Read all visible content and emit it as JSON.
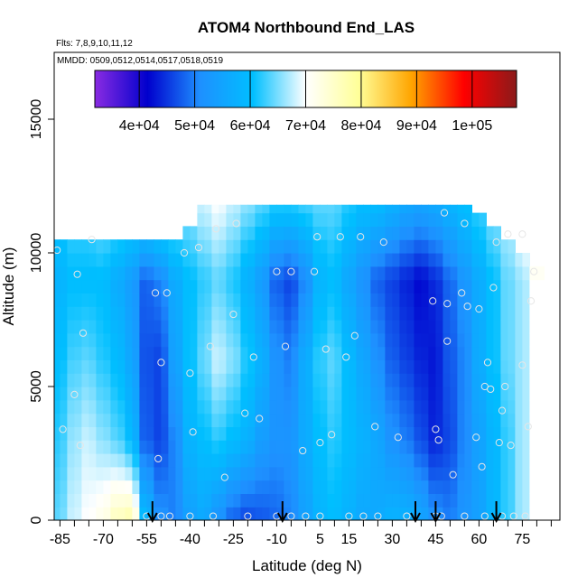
{
  "chart_data": {
    "type": "heatmap",
    "title": "ATOM4 Northbound End_LAS",
    "notes": [
      "Flts: 7,8,9,10,11,12",
      "MMDD: 0509,0512,0514,0517,0518,0519"
    ],
    "xlabel": "Latitude (deg N)",
    "ylabel": "Altitude (m)",
    "xlim": [
      -87,
      88
    ],
    "ylim": [
      0,
      17500
    ],
    "x_ticks": [
      -85,
      -70,
      -55,
      -40,
      -25,
      -10,
      5,
      15,
      30,
      45,
      60,
      75
    ],
    "x_minor_ticks": [
      -80,
      -75,
      -65,
      -60,
      -50,
      -45,
      -35,
      -30,
      -20,
      -15,
      -5,
      0,
      10,
      20,
      25,
      35,
      40,
      50,
      55,
      65,
      70,
      80,
      85
    ],
    "y_ticks": [
      0,
      5000,
      10000,
      15000
    ],
    "colorbar": {
      "min": 32000,
      "max": 108000,
      "ticks": [
        40000,
        50000,
        60000,
        70000,
        80000,
        90000,
        100000
      ],
      "tick_labels": [
        "4e+04",
        "5e+04",
        "6e+04",
        "7e+04",
        "8e+04",
        "9e+04",
        "1e+05"
      ],
      "colors": [
        "#8a2be2",
        "#0000cd",
        "#1e90ff",
        "#00bfff",
        "#ffffff",
        "#ffff99",
        "#ffa500",
        "#ff0000",
        "#8b1a1a"
      ]
    },
    "grid": [
      {
        "lat": -85,
        "top": 10500,
        "v": [
          [
            0,
            64000
          ],
          [
            3000,
            62000
          ],
          [
            6000,
            60000
          ],
          [
            9000,
            58000
          ],
          [
            10500,
            60000
          ]
        ]
      },
      {
        "lat": -80,
        "top": 10500,
        "v": [
          [
            0,
            68000
          ],
          [
            3000,
            66000
          ],
          [
            6000,
            63000
          ],
          [
            9000,
            60000
          ],
          [
            10500,
            62000
          ]
        ]
      },
      {
        "lat": -75,
        "top": 10500,
        "v": [
          [
            0,
            70000
          ],
          [
            3000,
            68000
          ],
          [
            6000,
            64000
          ],
          [
            9000,
            60000
          ],
          [
            10500,
            62000
          ]
        ]
      },
      {
        "lat": -70,
        "top": 10500,
        "v": [
          [
            0,
            72000
          ],
          [
            3000,
            66000
          ],
          [
            6000,
            62000
          ],
          [
            9000,
            60000
          ],
          [
            10500,
            63000
          ]
        ]
      },
      {
        "lat": -65,
        "top": 10500,
        "v": [
          [
            0,
            76000
          ],
          [
            3000,
            64000
          ],
          [
            6000,
            60000
          ],
          [
            9000,
            57000
          ],
          [
            10500,
            62000
          ]
        ]
      },
      {
        "lat": -60,
        "top": 10500,
        "v": [
          [
            0,
            78000
          ],
          [
            3000,
            60000
          ],
          [
            6000,
            56000
          ],
          [
            9000,
            54000
          ],
          [
            10500,
            60000
          ]
        ]
      },
      {
        "lat": -55,
        "top": 10500,
        "v": [
          [
            0,
            60000
          ],
          [
            3000,
            48000
          ],
          [
            6000,
            47000
          ],
          [
            9000,
            48000
          ],
          [
            10500,
            58000
          ]
        ]
      },
      {
        "lat": -50,
        "top": 10500,
        "v": [
          [
            0,
            52000
          ],
          [
            3000,
            46000
          ],
          [
            6000,
            46000
          ],
          [
            9000,
            50000
          ],
          [
            10500,
            60000
          ]
        ]
      },
      {
        "lat": -45,
        "top": 10500,
        "v": [
          [
            0,
            50000
          ],
          [
            3000,
            50000
          ],
          [
            6000,
            54000
          ],
          [
            9000,
            56000
          ],
          [
            10500,
            62000
          ]
        ]
      },
      {
        "lat": -40,
        "top": 11000,
        "v": [
          [
            0,
            54000
          ],
          [
            3000,
            58000
          ],
          [
            6000,
            60000
          ],
          [
            9000,
            60000
          ],
          [
            11000,
            64000
          ]
        ]
      },
      {
        "lat": -35,
        "top": 11800,
        "v": [
          [
            0,
            56000
          ],
          [
            3000,
            60000
          ],
          [
            6000,
            64000
          ],
          [
            9000,
            62000
          ],
          [
            11800,
            68000
          ]
        ]
      },
      {
        "lat": -30,
        "top": 11800,
        "v": [
          [
            0,
            52000
          ],
          [
            3000,
            62000
          ],
          [
            6000,
            68000
          ],
          [
            9000,
            64000
          ],
          [
            11800,
            70000
          ]
        ]
      },
      {
        "lat": -25,
        "top": 11800,
        "v": [
          [
            0,
            48000
          ],
          [
            3000,
            60000
          ],
          [
            6000,
            66000
          ],
          [
            9000,
            62000
          ],
          [
            11800,
            68000
          ]
        ]
      },
      {
        "lat": -20,
        "top": 11800,
        "v": [
          [
            0,
            46000
          ],
          [
            3000,
            58000
          ],
          [
            6000,
            62000
          ],
          [
            9000,
            58000
          ],
          [
            11800,
            66000
          ]
        ]
      },
      {
        "lat": -15,
        "top": 11800,
        "v": [
          [
            0,
            47000
          ],
          [
            3000,
            54000
          ],
          [
            6000,
            58000
          ],
          [
            9000,
            54000
          ],
          [
            11800,
            64000
          ]
        ]
      },
      {
        "lat": -10,
        "top": 11800,
        "v": [
          [
            0,
            48000
          ],
          [
            3000,
            52000
          ],
          [
            6000,
            52000
          ],
          [
            9000,
            48000
          ],
          [
            11800,
            62000
          ]
        ]
      },
      {
        "lat": -5,
        "top": 11800,
        "v": [
          [
            0,
            50000
          ],
          [
            3000,
            52000
          ],
          [
            6000,
            50000
          ],
          [
            9000,
            46000
          ],
          [
            11800,
            62000
          ]
        ]
      },
      {
        "lat": 0,
        "top": 11800,
        "v": [
          [
            0,
            54000
          ],
          [
            3000,
            56000
          ],
          [
            6000,
            56000
          ],
          [
            9000,
            50000
          ],
          [
            11800,
            63000
          ]
        ]
      },
      {
        "lat": 5,
        "top": 11800,
        "v": [
          [
            0,
            58000
          ],
          [
            3000,
            60000
          ],
          [
            6000,
            62000
          ],
          [
            9000,
            58000
          ],
          [
            11800,
            64000
          ]
        ]
      },
      {
        "lat": 10,
        "top": 11800,
        "v": [
          [
            0,
            60000
          ],
          [
            3000,
            62000
          ],
          [
            6000,
            64000
          ],
          [
            9000,
            60000
          ],
          [
            11800,
            64000
          ]
        ]
      },
      {
        "lat": 15,
        "top": 11800,
        "v": [
          [
            0,
            58000
          ],
          [
            3000,
            60000
          ],
          [
            6000,
            60000
          ],
          [
            9000,
            56000
          ],
          [
            11800,
            62000
          ]
        ]
      },
      {
        "lat": 20,
        "top": 11800,
        "v": [
          [
            0,
            56000
          ],
          [
            3000,
            58000
          ],
          [
            6000,
            56000
          ],
          [
            9000,
            52000
          ],
          [
            11800,
            60000
          ]
        ]
      },
      {
        "lat": 25,
        "top": 11800,
        "v": [
          [
            0,
            56000
          ],
          [
            3000,
            56000
          ],
          [
            6000,
            52000
          ],
          [
            9000,
            48000
          ],
          [
            11800,
            60000
          ]
        ]
      },
      {
        "lat": 30,
        "top": 11800,
        "v": [
          [
            0,
            58000
          ],
          [
            3000,
            52000
          ],
          [
            6000,
            48000
          ],
          [
            9000,
            46000
          ],
          [
            11800,
            58000
          ]
        ]
      },
      {
        "lat": 35,
        "top": 11800,
        "v": [
          [
            0,
            58000
          ],
          [
            3000,
            50000
          ],
          [
            6000,
            46000
          ],
          [
            9000,
            44000
          ],
          [
            11800,
            56000
          ]
        ]
      },
      {
        "lat": 40,
        "top": 11800,
        "v": [
          [
            0,
            56000
          ],
          [
            3000,
            47000
          ],
          [
            6000,
            44000
          ],
          [
            9000,
            42000
          ],
          [
            11800,
            55000
          ]
        ]
      },
      {
        "lat": 45,
        "top": 11800,
        "v": [
          [
            0,
            52000
          ],
          [
            3000,
            44000
          ],
          [
            6000,
            43000
          ],
          [
            9000,
            44000
          ],
          [
            11800,
            56000
          ]
        ]
      },
      {
        "lat": 50,
        "top": 11800,
        "v": [
          [
            0,
            50000
          ],
          [
            3000,
            46000
          ],
          [
            6000,
            47000
          ],
          [
            9000,
            48000
          ],
          [
            11800,
            58000
          ]
        ]
      },
      {
        "lat": 55,
        "top": 11800,
        "v": [
          [
            0,
            52000
          ],
          [
            3000,
            50000
          ],
          [
            6000,
            50000
          ],
          [
            9000,
            52000
          ],
          [
            11800,
            60000
          ]
        ]
      },
      {
        "lat": 60,
        "top": 11500,
        "v": [
          [
            0,
            54000
          ],
          [
            3000,
            54000
          ],
          [
            6000,
            56000
          ],
          [
            9000,
            56000
          ],
          [
            11500,
            62000
          ]
        ]
      },
      {
        "lat": 65,
        "top": 11000,
        "v": [
          [
            0,
            58000
          ],
          [
            3000,
            58000
          ],
          [
            6000,
            60000
          ],
          [
            9000,
            60000
          ],
          [
            11000,
            64000
          ]
        ]
      },
      {
        "lat": 70,
        "top": 10500,
        "v": [
          [
            0,
            62000
          ],
          [
            3000,
            62000
          ],
          [
            6000,
            64000
          ],
          [
            9000,
            64000
          ],
          [
            10500,
            66000
          ]
        ]
      },
      {
        "lat": 75,
        "top": 10000,
        "v": [
          [
            0,
            66000
          ],
          [
            3000,
            66000
          ],
          [
            6000,
            66000
          ],
          [
            9000,
            66000
          ],
          [
            10000,
            68000
          ]
        ]
      },
      {
        "lat": 80,
        "top": 9500,
        "v": [
          [
            0,
            70000
          ],
          [
            3000,
            70000
          ],
          [
            6000,
            70000
          ],
          [
            9000,
            70000
          ],
          [
            9500,
            72000
          ]
        ]
      }
    ],
    "sample_points": [
      {
        "x": -86,
        "y": 10100
      },
      {
        "x": -84,
        "y": 3400
      },
      {
        "x": -80,
        "y": 4700
      },
      {
        "x": -79,
        "y": 9200
      },
      {
        "x": -78,
        "y": 2800
      },
      {
        "x": -77,
        "y": 7000
      },
      {
        "x": -74,
        "y": 10500
      },
      {
        "x": -52,
        "y": 8500
      },
      {
        "x": -51,
        "y": 2300
      },
      {
        "x": -50,
        "y": 5900
      },
      {
        "x": -48,
        "y": 8500
      },
      {
        "x": -42,
        "y": 10000
      },
      {
        "x": -40,
        "y": 5500
      },
      {
        "x": -39,
        "y": 3300
      },
      {
        "x": -37,
        "y": 10200
      },
      {
        "x": -33,
        "y": 6500
      },
      {
        "x": -31,
        "y": 10900
      },
      {
        "x": -28,
        "y": 1600
      },
      {
        "x": -25,
        "y": 7700
      },
      {
        "x": -24,
        "y": 11100
      },
      {
        "x": -21,
        "y": 4000
      },
      {
        "x": -18,
        "y": 6100
      },
      {
        "x": -16,
        "y": 3800
      },
      {
        "x": -10,
        "y": 9300
      },
      {
        "x": -7,
        "y": 6500
      },
      {
        "x": -5,
        "y": 9300
      },
      {
        "x": -1,
        "y": 2600
      },
      {
        "x": 3,
        "y": 9300
      },
      {
        "x": 4,
        "y": 10600
      },
      {
        "x": 5,
        "y": 2900
      },
      {
        "x": 7,
        "y": 6400
      },
      {
        "x": 9,
        "y": 3200
      },
      {
        "x": 12,
        "y": 10600
      },
      {
        "x": 14,
        "y": 6100
      },
      {
        "x": 17,
        "y": 6900
      },
      {
        "x": 19,
        "y": 10600
      },
      {
        "x": 24,
        "y": 3500
      },
      {
        "x": 27,
        "y": 10400
      },
      {
        "x": 32,
        "y": 3100
      },
      {
        "x": 44,
        "y": 8200
      },
      {
        "x": 45,
        "y": 3400
      },
      {
        "x": 46,
        "y": 3000
      },
      {
        "x": 48,
        "y": 11500
      },
      {
        "x": 49,
        "y": 6700
      },
      {
        "x": 49,
        "y": 8100
      },
      {
        "x": 51,
        "y": 1700
      },
      {
        "x": 54,
        "y": 8500
      },
      {
        "x": 55,
        "y": 11100
      },
      {
        "x": 56,
        "y": 8000
      },
      {
        "x": 59,
        "y": 3100
      },
      {
        "x": 60,
        "y": 7900
      },
      {
        "x": 61,
        "y": 2000
      },
      {
        "x": 62,
        "y": 5000
      },
      {
        "x": 63,
        "y": 5900
      },
      {
        "x": 64,
        "y": 4900
      },
      {
        "x": 65,
        "y": 8700
      },
      {
        "x": 66,
        "y": 10400
      },
      {
        "x": 67,
        "y": 2900
      },
      {
        "x": 68,
        "y": 4100
      },
      {
        "x": 69,
        "y": 5000
      },
      {
        "x": 70,
        "y": 10700
      },
      {
        "x": 71,
        "y": 2800
      },
      {
        "x": 75,
        "y": 10700
      },
      {
        "x": 75,
        "y": 5800
      },
      {
        "x": 77,
        "y": 3500
      },
      {
        "x": 78,
        "y": 8200
      },
      {
        "x": 79,
        "y": 9300
      }
    ],
    "surface_points": [
      -55,
      -50,
      -47,
      -40,
      -32,
      -20,
      -10,
      -5,
      0,
      5,
      15,
      20,
      25,
      35,
      45,
      47,
      55,
      62,
      68,
      72,
      76
    ],
    "arrows": [
      -53,
      -8,
      38,
      45,
      66
    ]
  }
}
